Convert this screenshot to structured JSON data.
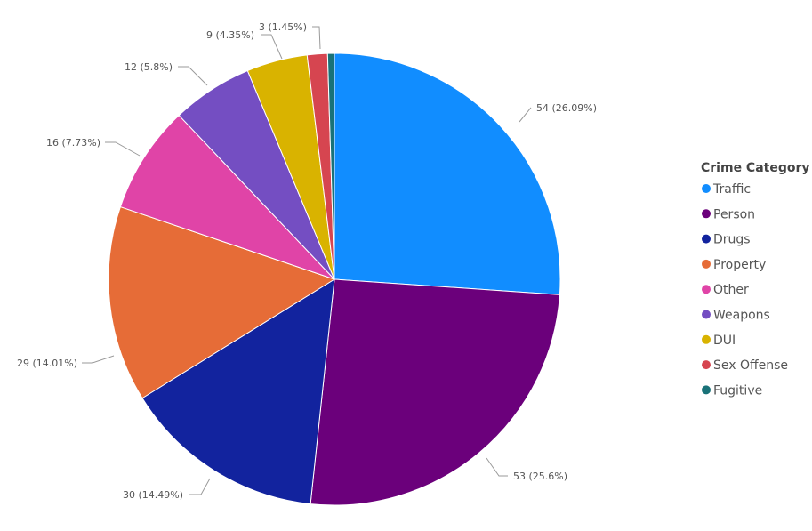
{
  "chart_data": {
    "type": "pie",
    "legend_title": "Crime Category",
    "legend_position": "right",
    "slices": [
      {
        "name": "Traffic",
        "value": 54,
        "label": "54 (26.09%)",
        "color": "#118DFF"
      },
      {
        "name": "Person",
        "value": 53,
        "label": "53 (25.6%)",
        "color": "#6B007B"
      },
      {
        "name": "Drugs",
        "value": 30,
        "label": "30 (14.49%)",
        "color": "#12239E"
      },
      {
        "name": "Property",
        "value": 29,
        "label": "29 (14.01%)",
        "color": "#E66C37"
      },
      {
        "name": "Other",
        "value": 16,
        "label": "16 (7.73%)",
        "color": "#E044A7"
      },
      {
        "name": "Weapons",
        "value": 12,
        "label": "12 (5.8%)",
        "color": "#744EC2"
      },
      {
        "name": "DUI",
        "value": 9,
        "label": "9 (4.35%)",
        "color": "#D9B300"
      },
      {
        "name": "Sex Offense",
        "value": 3,
        "label": "3 (1.45%)",
        "color": "#D64550"
      },
      {
        "name": "Fugitive",
        "value": 1,
        "label": "",
        "color": "#197278"
      }
    ]
  }
}
